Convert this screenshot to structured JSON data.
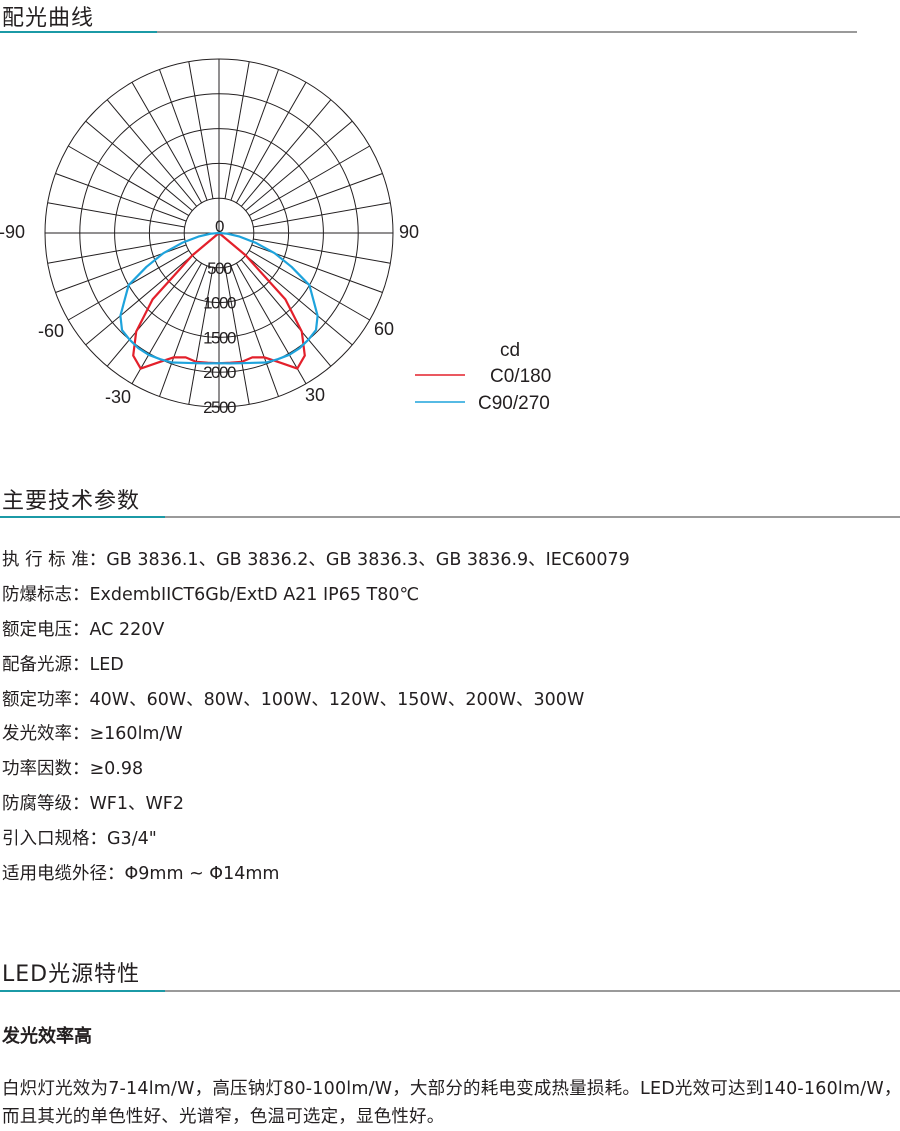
{
  "sections": {
    "curve_title": "配光曲线",
    "params_title": "主要技术参数",
    "led_title": "LED光源特性"
  },
  "colors": {
    "accent": "#1b9aa6",
    "c0": "#e3202b",
    "c90": "#1ea3dc"
  },
  "chart_data": {
    "type": "polar",
    "unit_label": "cd",
    "radial_ticks": [
      0,
      500,
      1000,
      1500,
      2000,
      2500
    ],
    "angle_labels": [
      "-90",
      "-60",
      "-30",
      "30",
      "60",
      "90"
    ],
    "angle_range": [
      -90,
      90
    ],
    "radial_range": [
      0,
      2500
    ],
    "grid": true,
    "legend_position": "right",
    "angles": [
      -90,
      -85,
      -80,
      -75,
      -70,
      -65,
      -60,
      -55,
      -50,
      -45,
      -40,
      -35,
      -30,
      -25,
      -20,
      -15,
      -10,
      -5,
      0,
      5,
      10,
      15,
      20,
      25,
      30,
      35,
      40,
      45,
      50,
      55,
      60,
      65,
      70,
      75,
      80,
      85,
      90
    ],
    "series": [
      {
        "name": "C0/180",
        "color": "#e3202b",
        "values": [
          0,
          0,
          0,
          0,
          0,
          0,
          0,
          0,
          500,
          1350,
          1850,
          2150,
          2250,
          2050,
          1900,
          1850,
          1880,
          1870,
          1870,
          1870,
          1880,
          1850,
          1900,
          2050,
          2250,
          2150,
          1850,
          1350,
          500,
          0,
          0,
          0,
          0,
          0,
          0,
          0,
          0
        ]
      },
      {
        "name": "C90/270",
        "color": "#1ea3dc",
        "values": [
          0,
          120,
          300,
          550,
          850,
          1150,
          1500,
          1650,
          1850,
          1970,
          2000,
          2020,
          2020,
          2000,
          1980,
          1930,
          1900,
          1880,
          1870,
          1880,
          1900,
          1930,
          1980,
          2000,
          2020,
          2020,
          2000,
          1970,
          1850,
          1650,
          1500,
          1150,
          850,
          550,
          300,
          120,
          0
        ]
      }
    ]
  },
  "params": [
    {
      "label": "执 行 标 准：",
      "value": "GB 3836.1、GB 3836.2、GB 3836.3、GB 3836.9、IEC60079"
    },
    {
      "label": "防爆标志：",
      "value": "ExdembIICT6Gb/ExtD A21 IP65 T80℃"
    },
    {
      "label": "额定电压：",
      "value": "AC 220V"
    },
    {
      "label": "配备光源：",
      "value": "LED"
    },
    {
      "label": "额定功率：",
      "value": "40W、60W、80W、100W、120W、150W、200W、300W"
    },
    {
      "label": "发光效率：",
      "value": "≥160lm/W"
    },
    {
      "label": "功率因数：",
      "value": "≥0.98"
    },
    {
      "label": "防腐等级：",
      "value": "WF1、WF2"
    },
    {
      "label": "引入口规格：",
      "value": "G3/4\""
    },
    {
      "label": "适用电缆外径：",
      "value": "Φ9mm ~ Φ14mm"
    }
  ],
  "led": {
    "subtitle": "发光效率高",
    "paragraph": "白炽灯光效为7-14lm/W，高压钠灯80-100lm/W，大部分的耗电变成热量损耗。LED光效可达到140-160lm/W，而且其光的单色性好、光谱窄，色温可选定，显色性好。"
  }
}
